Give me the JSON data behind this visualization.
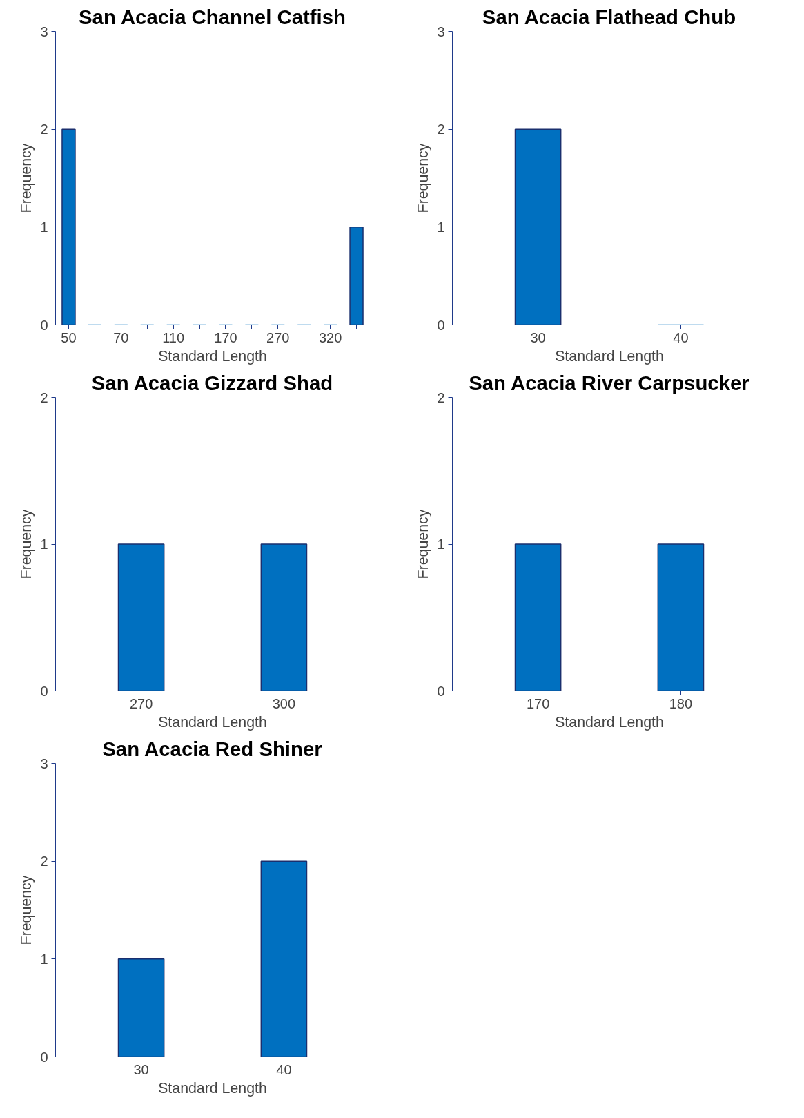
{
  "chart_data": [
    {
      "type": "bar",
      "title": "San Acacia Channel Catfish",
      "xlabel": "Standard Length",
      "ylabel": "Frequency",
      "categories": [
        "50",
        null,
        "70",
        null,
        "110",
        null,
        "170",
        null,
        "270",
        null,
        "320",
        null
      ],
      "values": [
        2,
        0,
        0,
        0,
        0,
        0,
        0,
        0,
        0,
        0,
        0,
        1
      ],
      "color": "#0070c0",
      "ylim": [
        0,
        3
      ],
      "yticks": [
        0,
        1,
        2,
        3
      ],
      "grid": false
    },
    {
      "type": "bar",
      "title": "San Acacia Flathead Chub",
      "xlabel": "Standard Length",
      "ylabel": "Frequency",
      "categories": [
        "30",
        "40"
      ],
      "values": [
        2,
        0
      ],
      "color": "#0070c0",
      "ylim": [
        0,
        3
      ],
      "yticks": [
        0,
        1,
        2,
        3
      ],
      "grid": false
    },
    {
      "type": "bar",
      "title": "San Acacia Gizzard Shad",
      "xlabel": "Standard Length",
      "ylabel": "Frequency",
      "categories": [
        "270",
        "300"
      ],
      "values": [
        1,
        1
      ],
      "color": "#0070c0",
      "ylim": [
        0,
        2
      ],
      "yticks": [
        0,
        1,
        2
      ],
      "grid": false
    },
    {
      "type": "bar",
      "title": "San Acacia River Carpsucker",
      "xlabel": "Standard Length",
      "ylabel": "Frequency",
      "categories": [
        "170",
        "180"
      ],
      "values": [
        1,
        1
      ],
      "color": "#0070c0",
      "ylim": [
        0,
        2
      ],
      "yticks": [
        0,
        1,
        2
      ],
      "grid": false
    },
    {
      "type": "bar",
      "title": "San Acacia Red Shiner",
      "xlabel": "Standard Length",
      "ylabel": "Frequency",
      "categories": [
        "30",
        "40"
      ],
      "values": [
        1,
        2
      ],
      "color": "#0070c0",
      "ylim": [
        0,
        3
      ],
      "yticks": [
        0,
        1,
        2,
        3
      ],
      "grid": false
    }
  ]
}
